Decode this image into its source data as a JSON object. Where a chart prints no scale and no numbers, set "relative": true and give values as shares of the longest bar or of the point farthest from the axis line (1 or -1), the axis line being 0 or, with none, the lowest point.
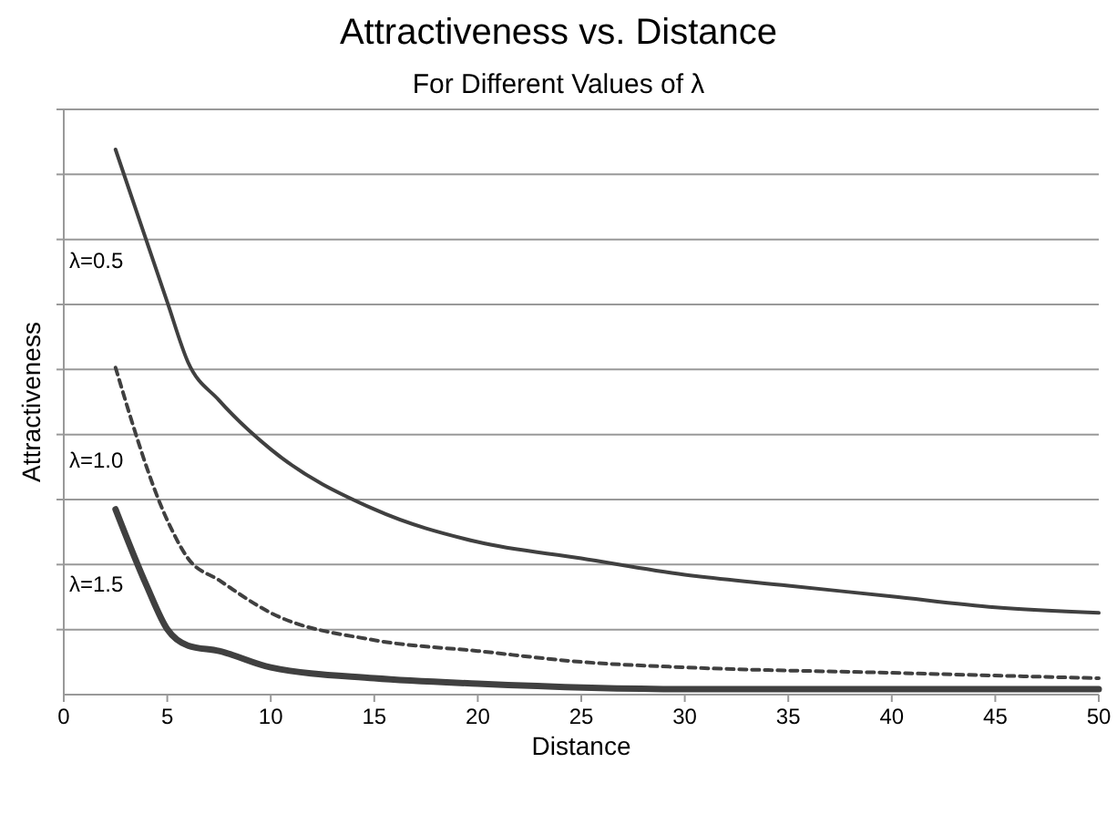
{
  "chart_data": {
    "type": "line",
    "title": "Attractiveness vs. Distance",
    "subtitle": "For Different Values of λ",
    "xlabel": "Distance",
    "ylabel": "Attractiveness",
    "relative": true,
    "xlim": [
      0,
      50
    ],
    "xticks": [
      0,
      5,
      10,
      15,
      20,
      25,
      30,
      35,
      40,
      45,
      50
    ],
    "grid": "y",
    "legend": false,
    "series": [
      {
        "name": "λ=0.5",
        "color": "#404040",
        "line_style": "solid",
        "x": [
          2.5,
          5,
          6,
          7.5,
          10,
          15,
          20,
          25,
          30,
          35,
          40,
          45,
          50
        ],
        "values": [
          1,
          0.72,
          0.61,
          0.54,
          0.45,
          0.34,
          0.28,
          0.25,
          0.22,
          0.2,
          0.18,
          0.16,
          0.15
        ]
      },
      {
        "name": "λ=1.0",
        "color": "#404040",
        "line_style": "dashed",
        "x": [
          2.5,
          5,
          6,
          7.5,
          10,
          15,
          20,
          25,
          30,
          40,
          50
        ],
        "values": [
          0.6,
          0.32,
          0.25,
          0.21,
          0.15,
          0.1,
          0.08,
          0.06,
          0.05,
          0.04,
          0.03
        ]
      },
      {
        "name": "λ=1.5",
        "color": "#404040",
        "line_style": "solid",
        "x": [
          2.5,
          4,
          5,
          6,
          7.5,
          10,
          15,
          20,
          30,
          50
        ],
        "values": [
          0.34,
          0.2,
          0.12,
          0.09,
          0.08,
          0.05,
          0.03,
          0.02,
          0.01,
          0.01
        ]
      }
    ]
  }
}
